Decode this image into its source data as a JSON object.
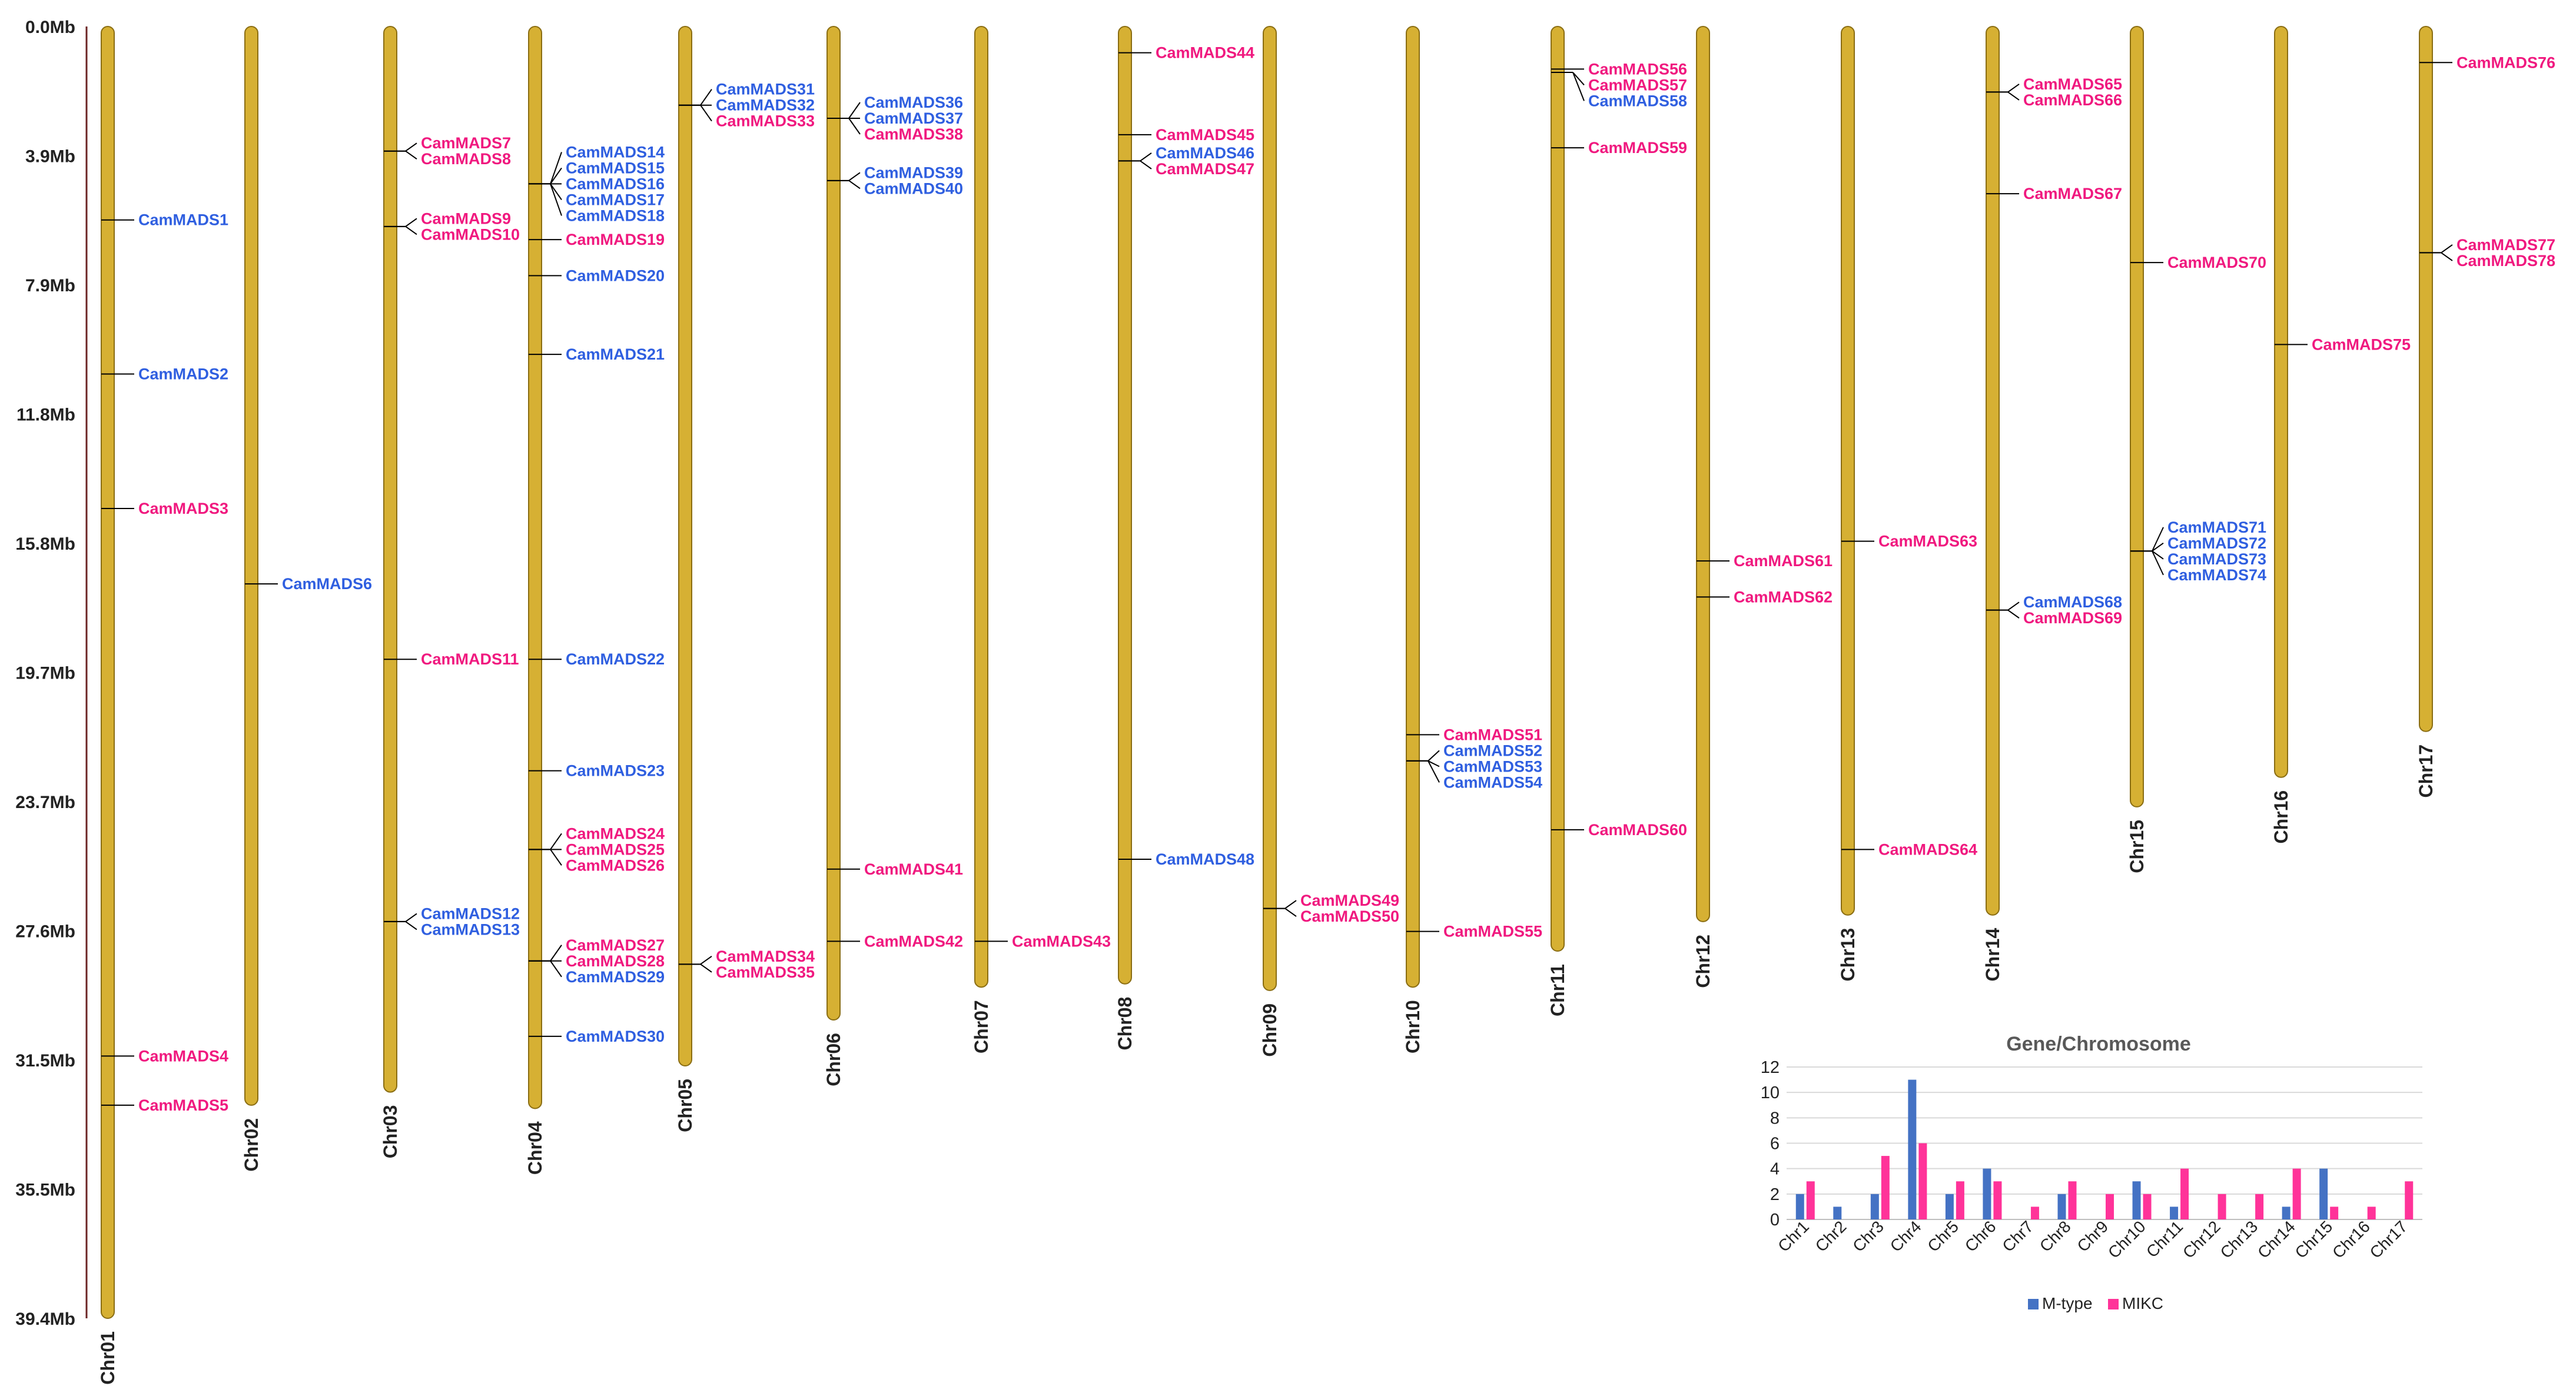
{
  "map": {
    "scale_mb_max": 39.4,
    "scale_ticks": [
      "0.0Mb",
      "3.9Mb",
      "7.9Mb",
      "11.8Mb",
      "15.8Mb",
      "19.7Mb",
      "23.7Mb",
      "27.6Mb",
      "31.5Mb",
      "35.5Mb",
      "39.4Mb"
    ],
    "colors": {
      "chromosome_fill": "#d6b033",
      "chromosome_stroke": "#8a6d12",
      "m_type": "#2f5fe0",
      "mikc": "#f0197f",
      "line": "#000000"
    },
    "chromosomes": [
      {
        "name": "Chr01",
        "length_mb": 39.4,
        "genes": [
          {
            "name": "CamMADS1",
            "pos": 5.9,
            "type": "M"
          },
          {
            "name": "CamMADS2",
            "pos": 10.6,
            "type": "M"
          },
          {
            "name": "CamMADS3",
            "pos": 14.7,
            "type": "MIKC"
          },
          {
            "name": "CamMADS4",
            "pos": 31.4,
            "type": "MIKC"
          },
          {
            "name": "CamMADS5",
            "pos": 32.9,
            "type": "MIKC"
          }
        ]
      },
      {
        "name": "Chr02",
        "length_mb": 32.9,
        "genes": [
          {
            "name": "CamMADS6",
            "pos": 17.0,
            "type": "M"
          }
        ]
      },
      {
        "name": "Chr03",
        "length_mb": 32.5,
        "genes": [
          {
            "name": "CamMADS7",
            "pos": 3.8,
            "type": "MIKC"
          },
          {
            "name": "CamMADS8",
            "pos": 3.8,
            "type": "MIKC"
          },
          {
            "name": "CamMADS9",
            "pos": 6.1,
            "type": "MIKC"
          },
          {
            "name": "CamMADS10",
            "pos": 6.1,
            "type": "MIKC"
          },
          {
            "name": "CamMADS11",
            "pos": 19.3,
            "type": "MIKC"
          },
          {
            "name": "CamMADS12",
            "pos": 27.3,
            "type": "M"
          },
          {
            "name": "CamMADS13",
            "pos": 27.3,
            "type": "M"
          }
        ]
      },
      {
        "name": "Chr04",
        "length_mb": 33.0,
        "genes": [
          {
            "name": "CamMADS14",
            "pos": 4.8,
            "type": "M"
          },
          {
            "name": "CamMADS15",
            "pos": 4.8,
            "type": "M"
          },
          {
            "name": "CamMADS16",
            "pos": 4.8,
            "type": "M"
          },
          {
            "name": "CamMADS17",
            "pos": 4.8,
            "type": "M"
          },
          {
            "name": "CamMADS18",
            "pos": 4.8,
            "type": "M"
          },
          {
            "name": "CamMADS19",
            "pos": 6.5,
            "type": "MIKC"
          },
          {
            "name": "CamMADS20",
            "pos": 7.6,
            "type": "M"
          },
          {
            "name": "CamMADS21",
            "pos": 10.0,
            "type": "M"
          },
          {
            "name": "CamMADS22",
            "pos": 19.3,
            "type": "M"
          },
          {
            "name": "CamMADS23",
            "pos": 22.7,
            "type": "M"
          },
          {
            "name": "CamMADS24",
            "pos": 25.1,
            "type": "MIKC"
          },
          {
            "name": "CamMADS25",
            "pos": 25.1,
            "type": "MIKC"
          },
          {
            "name": "CamMADS26",
            "pos": 25.1,
            "type": "MIKC"
          },
          {
            "name": "CamMADS27",
            "pos": 28.5,
            "type": "MIKC"
          },
          {
            "name": "CamMADS28",
            "pos": 28.5,
            "type": "MIKC"
          },
          {
            "name": "CamMADS29",
            "pos": 28.5,
            "type": "M"
          },
          {
            "name": "CamMADS30",
            "pos": 30.8,
            "type": "M"
          }
        ]
      },
      {
        "name": "Chr05",
        "length_mb": 31.7,
        "genes": [
          {
            "name": "CamMADS31",
            "pos": 2.4,
            "type": "M"
          },
          {
            "name": "CamMADS32",
            "pos": 2.4,
            "type": "M"
          },
          {
            "name": "CamMADS33",
            "pos": 2.4,
            "type": "MIKC"
          },
          {
            "name": "CamMADS34",
            "pos": 28.6,
            "type": "MIKC"
          },
          {
            "name": "CamMADS35",
            "pos": 28.6,
            "type": "MIKC"
          }
        ]
      },
      {
        "name": "Chr06",
        "length_mb": 30.3,
        "genes": [
          {
            "name": "CamMADS36",
            "pos": 2.8,
            "type": "M"
          },
          {
            "name": "CamMADS37",
            "pos": 2.8,
            "type": "M"
          },
          {
            "name": "CamMADS38",
            "pos": 2.8,
            "type": "MIKC"
          },
          {
            "name": "CamMADS39",
            "pos": 4.7,
            "type": "M"
          },
          {
            "name": "CamMADS40",
            "pos": 4.7,
            "type": "M"
          },
          {
            "name": "CamMADS41",
            "pos": 25.7,
            "type": "MIKC"
          },
          {
            "name": "CamMADS42",
            "pos": 27.9,
            "type": "MIKC"
          }
        ]
      },
      {
        "name": "Chr07",
        "length_mb": 29.3,
        "genes": [
          {
            "name": "CamMADS43",
            "pos": 27.9,
            "type": "MIKC"
          }
        ]
      },
      {
        "name": "Chr08",
        "length_mb": 29.2,
        "genes": [
          {
            "name": "CamMADS44",
            "pos": 0.8,
            "type": "MIKC"
          },
          {
            "name": "CamMADS45",
            "pos": 3.3,
            "type": "MIKC"
          },
          {
            "name": "CamMADS46",
            "pos": 4.1,
            "type": "M"
          },
          {
            "name": "CamMADS47",
            "pos": 4.1,
            "type": "MIKC"
          },
          {
            "name": "CamMADS48",
            "pos": 25.4,
            "type": "M"
          }
        ]
      },
      {
        "name": "Chr09",
        "length_mb": 29.4,
        "genes": [
          {
            "name": "CamMADS49",
            "pos": 26.9,
            "type": "MIKC"
          },
          {
            "name": "CamMADS50",
            "pos": 26.9,
            "type": "MIKC"
          }
        ]
      },
      {
        "name": "Chr10",
        "length_mb": 29.3,
        "genes": [
          {
            "name": "CamMADS51",
            "pos": 21.6,
            "type": "MIKC"
          },
          {
            "name": "CamMADS52",
            "pos": 22.4,
            "type": "M"
          },
          {
            "name": "CamMADS53",
            "pos": 22.4,
            "type": "M"
          },
          {
            "name": "CamMADS54",
            "pos": 22.4,
            "type": "M"
          },
          {
            "name": "CamMADS55",
            "pos": 27.6,
            "type": "MIKC"
          }
        ]
      },
      {
        "name": "Chr11",
        "length_mb": 28.2,
        "genes": [
          {
            "name": "CamMADS56",
            "pos": 1.3,
            "type": "MIKC"
          },
          {
            "name": "CamMADS57",
            "pos": 1.4,
            "type": "MIKC"
          },
          {
            "name": "CamMADS58",
            "pos": 1.4,
            "type": "M"
          },
          {
            "name": "CamMADS59",
            "pos": 3.7,
            "type": "MIKC"
          },
          {
            "name": "CamMADS60",
            "pos": 24.5,
            "type": "MIKC"
          }
        ]
      },
      {
        "name": "Chr12",
        "length_mb": 27.3,
        "genes": [
          {
            "name": "CamMADS61",
            "pos": 16.3,
            "type": "MIKC"
          },
          {
            "name": "CamMADS62",
            "pos": 17.4,
            "type": "MIKC"
          }
        ]
      },
      {
        "name": "Chr13",
        "length_mb": 27.1,
        "genes": [
          {
            "name": "CamMADS63",
            "pos": 15.7,
            "type": "MIKC"
          },
          {
            "name": "CamMADS64",
            "pos": 25.1,
            "type": "MIKC"
          }
        ]
      },
      {
        "name": "Chr14",
        "length_mb": 27.1,
        "genes": [
          {
            "name": "CamMADS65",
            "pos": 2.0,
            "type": "MIKC"
          },
          {
            "name": "CamMADS66",
            "pos": 2.0,
            "type": "MIKC"
          },
          {
            "name": "CamMADS67",
            "pos": 5.1,
            "type": "MIKC"
          },
          {
            "name": "CamMADS68",
            "pos": 17.8,
            "type": "M"
          },
          {
            "name": "CamMADS69",
            "pos": 17.8,
            "type": "MIKC"
          }
        ]
      },
      {
        "name": "Chr15",
        "length_mb": 23.8,
        "genes": [
          {
            "name": "CamMADS70",
            "pos": 7.2,
            "type": "MIKC"
          },
          {
            "name": "CamMADS71",
            "pos": 16.0,
            "type": "M"
          },
          {
            "name": "CamMADS72",
            "pos": 16.0,
            "type": "M"
          },
          {
            "name": "CamMADS73",
            "pos": 16.0,
            "type": "M"
          },
          {
            "name": "CamMADS74",
            "pos": 16.0,
            "type": "M"
          }
        ]
      },
      {
        "name": "Chr16",
        "length_mb": 22.9,
        "genes": [
          {
            "name": "CamMADS75",
            "pos": 9.7,
            "type": "MIKC"
          }
        ]
      },
      {
        "name": "Chr17",
        "length_mb": 21.5,
        "genes": [
          {
            "name": "CamMADS76",
            "pos": 1.1,
            "type": "MIKC"
          },
          {
            "name": "CamMADS77",
            "pos": 6.9,
            "type": "MIKC"
          },
          {
            "name": "CamMADS78",
            "pos": 6.9,
            "type": "MIKC"
          }
        ]
      }
    ]
  },
  "chart_data": {
    "type": "bar",
    "title": "Gene/Chromosome",
    "categories": [
      "Chr1",
      "Chr2",
      "Chr3",
      "Chr4",
      "Chr5",
      "Chr6",
      "Chr7",
      "Chr8",
      "Chr9",
      "Chr10",
      "Chr11",
      "Chr12",
      "Chr13",
      "Chr14",
      "Chr15",
      "Chr16",
      "Chr17"
    ],
    "series": [
      {
        "name": "M-type",
        "color": "#4472c4",
        "values": [
          2,
          1,
          2,
          11,
          2,
          4,
          0,
          2,
          0,
          3,
          1,
          0,
          0,
          1,
          4,
          0,
          0
        ]
      },
      {
        "name": "MIKC",
        "color": "#ff3399",
        "values": [
          3,
          0,
          5,
          6,
          3,
          3,
          1,
          3,
          2,
          2,
          4,
          2,
          2,
          4,
          1,
          1,
          3
        ]
      }
    ],
    "ylim": [
      0,
      12
    ],
    "yticks": [
      0,
      2,
      4,
      6,
      8,
      10,
      12
    ],
    "legend": "bottom",
    "xlabel": "",
    "ylabel": ""
  }
}
